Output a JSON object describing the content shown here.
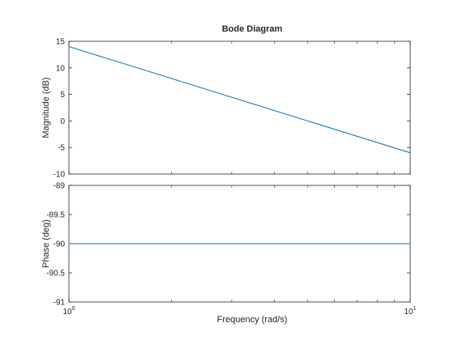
{
  "chart_data": {
    "type": "line",
    "title": "Bode Diagram",
    "xlabel": "Frequency  (rad/s)",
    "x_scale": "log",
    "xlim": [
      1,
      10
    ],
    "x_tick_labels": [
      {
        "base": "10",
        "exp": "0",
        "value": 1
      },
      {
        "base": "10",
        "exp": "1",
        "value": 10
      }
    ],
    "grid": false,
    "legend": "none",
    "subplots": [
      {
        "name": "magnitude",
        "ylabel": "Magnitude (dB)",
        "ylim": [
          -10,
          15
        ],
        "yticks": [
          -10,
          -5,
          0,
          5,
          10,
          15
        ],
        "series": [
          {
            "x": [
              1,
              10
            ],
            "y": [
              14,
              -6
            ],
            "color": "#0072BD"
          }
        ]
      },
      {
        "name": "phase",
        "ylabel": "Phase (deg)",
        "ylim": [
          -91,
          -89
        ],
        "yticks": [
          -91,
          -90.5,
          -90,
          -89.5,
          -89
        ],
        "series": [
          {
            "x": [
              1,
              10
            ],
            "y": [
              -90,
              -90
            ],
            "color": "#0072BD"
          }
        ]
      }
    ]
  }
}
